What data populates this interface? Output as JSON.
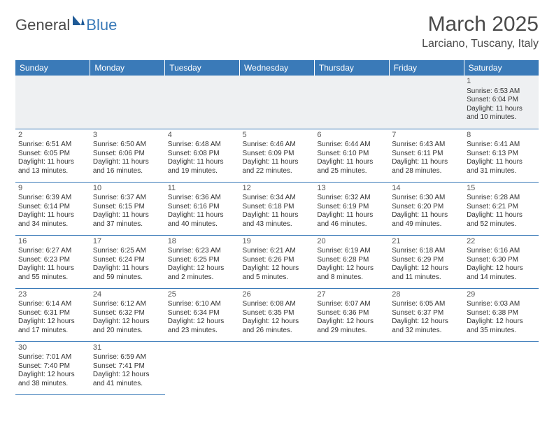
{
  "logo": {
    "text1": "General",
    "text2": "Blue",
    "sail_color": "#1f5a96"
  },
  "title": "March 2025",
  "subtitle": "Larciano, Tuscany, Italy",
  "colors": {
    "header_bg": "#3a7ab8",
    "border": "#3a7ab8",
    "empty_bg": "#eef0f2"
  },
  "weekdays": [
    "Sunday",
    "Monday",
    "Tuesday",
    "Wednesday",
    "Thursday",
    "Friday",
    "Saturday"
  ],
  "weeks": [
    [
      null,
      null,
      null,
      null,
      null,
      null,
      {
        "d": "1",
        "sr": "Sunrise: 6:53 AM",
        "ss": "Sunset: 6:04 PM",
        "dl1": "Daylight: 11 hours",
        "dl2": "and 10 minutes."
      }
    ],
    [
      {
        "d": "2",
        "sr": "Sunrise: 6:51 AM",
        "ss": "Sunset: 6:05 PM",
        "dl1": "Daylight: 11 hours",
        "dl2": "and 13 minutes."
      },
      {
        "d": "3",
        "sr": "Sunrise: 6:50 AM",
        "ss": "Sunset: 6:06 PM",
        "dl1": "Daylight: 11 hours",
        "dl2": "and 16 minutes."
      },
      {
        "d": "4",
        "sr": "Sunrise: 6:48 AM",
        "ss": "Sunset: 6:08 PM",
        "dl1": "Daylight: 11 hours",
        "dl2": "and 19 minutes."
      },
      {
        "d": "5",
        "sr": "Sunrise: 6:46 AM",
        "ss": "Sunset: 6:09 PM",
        "dl1": "Daylight: 11 hours",
        "dl2": "and 22 minutes."
      },
      {
        "d": "6",
        "sr": "Sunrise: 6:44 AM",
        "ss": "Sunset: 6:10 PM",
        "dl1": "Daylight: 11 hours",
        "dl2": "and 25 minutes."
      },
      {
        "d": "7",
        "sr": "Sunrise: 6:43 AM",
        "ss": "Sunset: 6:11 PM",
        "dl1": "Daylight: 11 hours",
        "dl2": "and 28 minutes."
      },
      {
        "d": "8",
        "sr": "Sunrise: 6:41 AM",
        "ss": "Sunset: 6:13 PM",
        "dl1": "Daylight: 11 hours",
        "dl2": "and 31 minutes."
      }
    ],
    [
      {
        "d": "9",
        "sr": "Sunrise: 6:39 AM",
        "ss": "Sunset: 6:14 PM",
        "dl1": "Daylight: 11 hours",
        "dl2": "and 34 minutes."
      },
      {
        "d": "10",
        "sr": "Sunrise: 6:37 AM",
        "ss": "Sunset: 6:15 PM",
        "dl1": "Daylight: 11 hours",
        "dl2": "and 37 minutes."
      },
      {
        "d": "11",
        "sr": "Sunrise: 6:36 AM",
        "ss": "Sunset: 6:16 PM",
        "dl1": "Daylight: 11 hours",
        "dl2": "and 40 minutes."
      },
      {
        "d": "12",
        "sr": "Sunrise: 6:34 AM",
        "ss": "Sunset: 6:18 PM",
        "dl1": "Daylight: 11 hours",
        "dl2": "and 43 minutes."
      },
      {
        "d": "13",
        "sr": "Sunrise: 6:32 AM",
        "ss": "Sunset: 6:19 PM",
        "dl1": "Daylight: 11 hours",
        "dl2": "and 46 minutes."
      },
      {
        "d": "14",
        "sr": "Sunrise: 6:30 AM",
        "ss": "Sunset: 6:20 PM",
        "dl1": "Daylight: 11 hours",
        "dl2": "and 49 minutes."
      },
      {
        "d": "15",
        "sr": "Sunrise: 6:28 AM",
        "ss": "Sunset: 6:21 PM",
        "dl1": "Daylight: 11 hours",
        "dl2": "and 52 minutes."
      }
    ],
    [
      {
        "d": "16",
        "sr": "Sunrise: 6:27 AM",
        "ss": "Sunset: 6:23 PM",
        "dl1": "Daylight: 11 hours",
        "dl2": "and 55 minutes."
      },
      {
        "d": "17",
        "sr": "Sunrise: 6:25 AM",
        "ss": "Sunset: 6:24 PM",
        "dl1": "Daylight: 11 hours",
        "dl2": "and 59 minutes."
      },
      {
        "d": "18",
        "sr": "Sunrise: 6:23 AM",
        "ss": "Sunset: 6:25 PM",
        "dl1": "Daylight: 12 hours",
        "dl2": "and 2 minutes."
      },
      {
        "d": "19",
        "sr": "Sunrise: 6:21 AM",
        "ss": "Sunset: 6:26 PM",
        "dl1": "Daylight: 12 hours",
        "dl2": "and 5 minutes."
      },
      {
        "d": "20",
        "sr": "Sunrise: 6:19 AM",
        "ss": "Sunset: 6:28 PM",
        "dl1": "Daylight: 12 hours",
        "dl2": "and 8 minutes."
      },
      {
        "d": "21",
        "sr": "Sunrise: 6:18 AM",
        "ss": "Sunset: 6:29 PM",
        "dl1": "Daylight: 12 hours",
        "dl2": "and 11 minutes."
      },
      {
        "d": "22",
        "sr": "Sunrise: 6:16 AM",
        "ss": "Sunset: 6:30 PM",
        "dl1": "Daylight: 12 hours",
        "dl2": "and 14 minutes."
      }
    ],
    [
      {
        "d": "23",
        "sr": "Sunrise: 6:14 AM",
        "ss": "Sunset: 6:31 PM",
        "dl1": "Daylight: 12 hours",
        "dl2": "and 17 minutes."
      },
      {
        "d": "24",
        "sr": "Sunrise: 6:12 AM",
        "ss": "Sunset: 6:32 PM",
        "dl1": "Daylight: 12 hours",
        "dl2": "and 20 minutes."
      },
      {
        "d": "25",
        "sr": "Sunrise: 6:10 AM",
        "ss": "Sunset: 6:34 PM",
        "dl1": "Daylight: 12 hours",
        "dl2": "and 23 minutes."
      },
      {
        "d": "26",
        "sr": "Sunrise: 6:08 AM",
        "ss": "Sunset: 6:35 PM",
        "dl1": "Daylight: 12 hours",
        "dl2": "and 26 minutes."
      },
      {
        "d": "27",
        "sr": "Sunrise: 6:07 AM",
        "ss": "Sunset: 6:36 PM",
        "dl1": "Daylight: 12 hours",
        "dl2": "and 29 minutes."
      },
      {
        "d": "28",
        "sr": "Sunrise: 6:05 AM",
        "ss": "Sunset: 6:37 PM",
        "dl1": "Daylight: 12 hours",
        "dl2": "and 32 minutes."
      },
      {
        "d": "29",
        "sr": "Sunrise: 6:03 AM",
        "ss": "Sunset: 6:38 PM",
        "dl1": "Daylight: 12 hours",
        "dl2": "and 35 minutes."
      }
    ],
    [
      {
        "d": "30",
        "sr": "Sunrise: 7:01 AM",
        "ss": "Sunset: 7:40 PM",
        "dl1": "Daylight: 12 hours",
        "dl2": "and 38 minutes."
      },
      {
        "d": "31",
        "sr": "Sunrise: 6:59 AM",
        "ss": "Sunset: 7:41 PM",
        "dl1": "Daylight: 12 hours",
        "dl2": "and 41 minutes."
      },
      null,
      null,
      null,
      null,
      null
    ]
  ]
}
